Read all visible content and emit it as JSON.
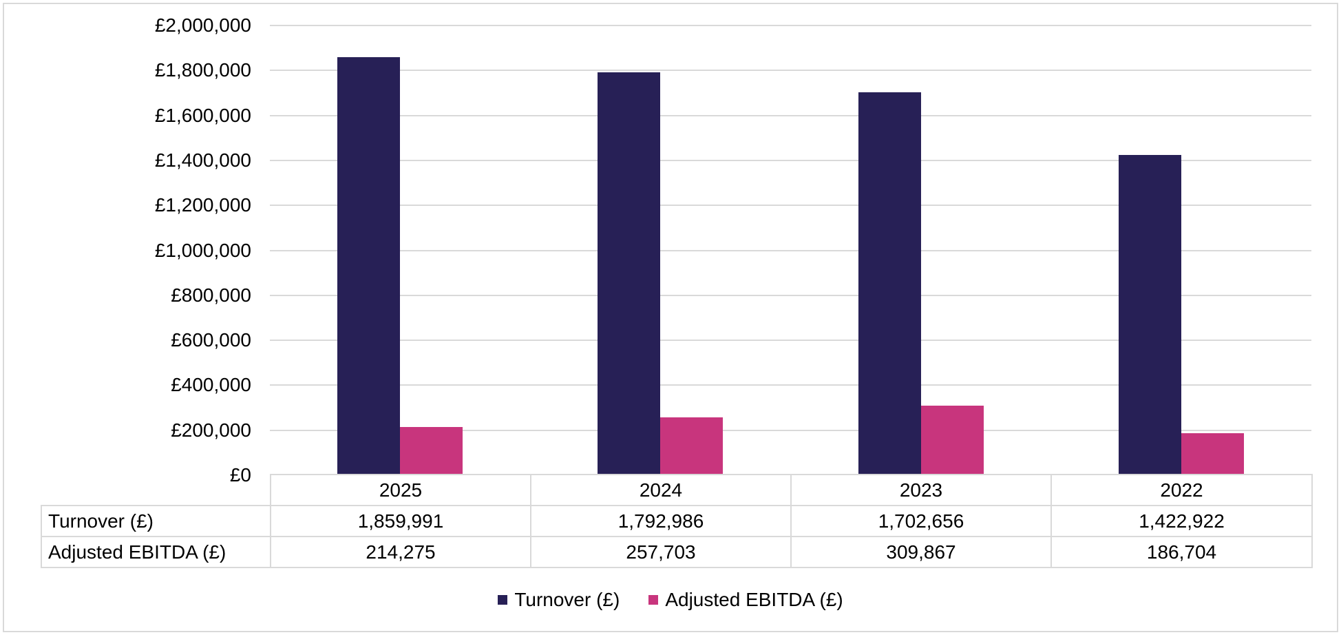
{
  "frame": {
    "background_color": "#FFFFFF",
    "border_color": "#D9D9D9",
    "gridline_color": "#D9D9D9",
    "text_color": "#000000"
  },
  "chart_data": {
    "type": "bar",
    "title": "",
    "categories": [
      "2025",
      "2024",
      "2023",
      "2022"
    ],
    "series": [
      {
        "name": "Turnover (£)",
        "color": "#272056",
        "values": [
          1859991,
          1792986,
          1702656,
          1422922
        ]
      },
      {
        "name": "Adjusted EBITDA (£)",
        "color": "#C8357D",
        "values": [
          214275,
          257703,
          309867,
          186704
        ]
      }
    ],
    "y_axis": {
      "min": 0,
      "max": 2000000,
      "step": 200000,
      "tick_labels": [
        "£2,000,000",
        "£1,800,000",
        "£1,600,000",
        "£1,400,000",
        "£1,200,000",
        "£1,000,000",
        "£800,000",
        "£600,000",
        "£400,000",
        "£200,000",
        "£0"
      ]
    },
    "gridlines": true,
    "legend_position": "bottom"
  },
  "data_table": {
    "column_headers": [
      "2025",
      "2024",
      "2023",
      "2022"
    ],
    "rows": [
      {
        "label": "Turnover (£)",
        "values": [
          "1,859,991",
          "1,792,986",
          "1,702,656",
          "1,422,922"
        ]
      },
      {
        "label": "Adjusted EBITDA (£)",
        "values": [
          "214,275",
          "257,703",
          "309,867",
          "186,704"
        ]
      }
    ]
  },
  "legend": {
    "items": [
      {
        "label": "Turnover (£)",
        "color": "#272056"
      },
      {
        "label": "Adjusted EBITDA (£)",
        "color": "#C8357D"
      }
    ]
  }
}
